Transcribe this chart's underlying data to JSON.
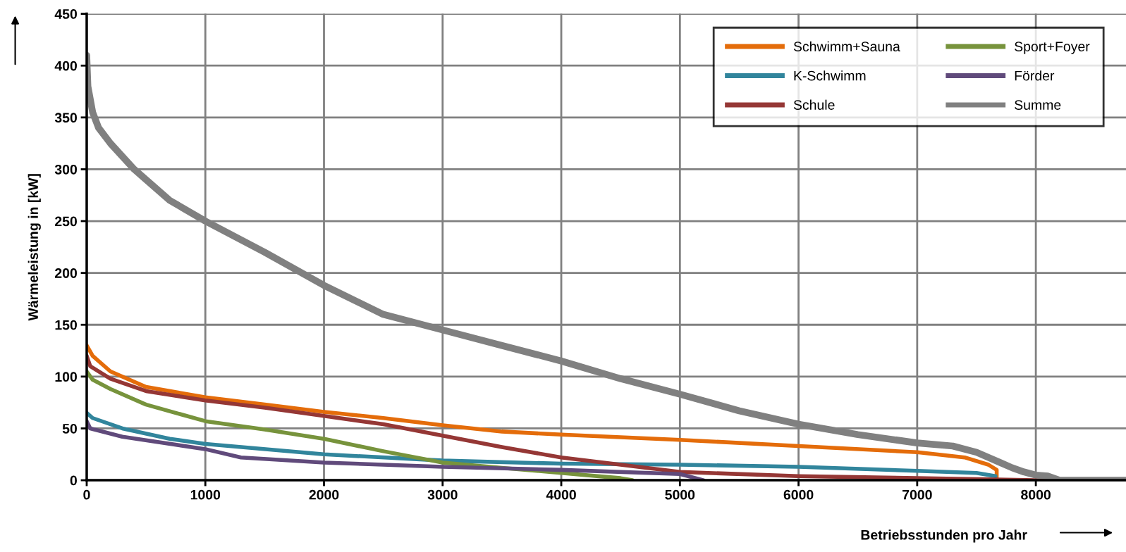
{
  "chart_data": {
    "type": "line",
    "xlabel": "Betriebsstunden pro Jahr",
    "ylabel": "Wärmeleistung in [kW]",
    "xlim": [
      0,
      8760
    ],
    "xticks": [
      0,
      1000,
      2000,
      3000,
      4000,
      5000,
      6000,
      7000,
      8000
    ],
    "ylim": [
      0,
      450
    ],
    "yticks": [
      0,
      50,
      100,
      150,
      200,
      250,
      300,
      350,
      400,
      450
    ],
    "grid": true,
    "legend": "top right",
    "marker": "none",
    "line_style": "solid",
    "series": [
      {
        "name": "Schwimm+Sauna",
        "color": "#e46c0a",
        "x": [
          0,
          50,
          200,
          500,
          1000,
          1500,
          2000,
          2500,
          3000,
          3500,
          4000,
          5000,
          6000,
          7000,
          7400,
          7600,
          7670,
          7670
        ],
        "values": [
          130,
          120,
          105,
          90,
          80,
          73,
          66,
          60,
          53,
          47,
          44,
          39,
          33,
          27,
          22,
          15,
          10,
          0
        ]
      },
      {
        "name": "K-Schwimm",
        "color": "#31859c",
        "x": [
          0,
          50,
          300,
          700,
          1000,
          2000,
          3000,
          4000,
          5000,
          6000,
          7000,
          7500,
          7660
        ],
        "values": [
          65,
          60,
          50,
          40,
          35,
          25,
          19,
          16,
          15,
          13,
          9,
          7,
          4
        ]
      },
      {
        "name": "Schule",
        "color": "#953735",
        "x": [
          0,
          30,
          200,
          500,
          1000,
          1500,
          2000,
          2500,
          3000,
          3500,
          4000,
          4500,
          5000,
          6000,
          7000,
          8000,
          8200
        ],
        "values": [
          120,
          110,
          98,
          86,
          77,
          70,
          62,
          54,
          43,
          32,
          22,
          15,
          8,
          4,
          2,
          0,
          0
        ]
      },
      {
        "name": "Sport+Foyer",
        "color": "#77933c",
        "x": [
          0,
          50,
          200,
          500,
          1000,
          1500,
          2000,
          2500,
          3000,
          3500,
          4000,
          4500,
          4600
        ],
        "values": [
          105,
          97,
          88,
          73,
          57,
          49,
          40,
          28,
          17,
          12,
          7,
          2,
          0
        ]
      },
      {
        "name": "Förder",
        "color": "#604a7b",
        "x": [
          0,
          30,
          300,
          1000,
          1300,
          2000,
          3000,
          4000,
          5000,
          5200
        ],
        "values": [
          57,
          50,
          42,
          30,
          22,
          17,
          13,
          10,
          6,
          0
        ]
      },
      {
        "name": "Summe",
        "color": "#808080",
        "x": [
          0,
          10,
          50,
          100,
          200,
          400,
          700,
          1000,
          1500,
          2000,
          2500,
          3000,
          3500,
          4000,
          4500,
          5000,
          5500,
          6000,
          6500,
          7000,
          7300,
          7500,
          7700,
          7800,
          7900,
          8000,
          8100,
          8200,
          8760
        ],
        "values": [
          410,
          380,
          355,
          340,
          325,
          300,
          270,
          250,
          220,
          188,
          160,
          145,
          130,
          115,
          98,
          83,
          67,
          54,
          44,
          36,
          33,
          27,
          17,
          12,
          8,
          5,
          4,
          0,
          0
        ]
      }
    ]
  }
}
